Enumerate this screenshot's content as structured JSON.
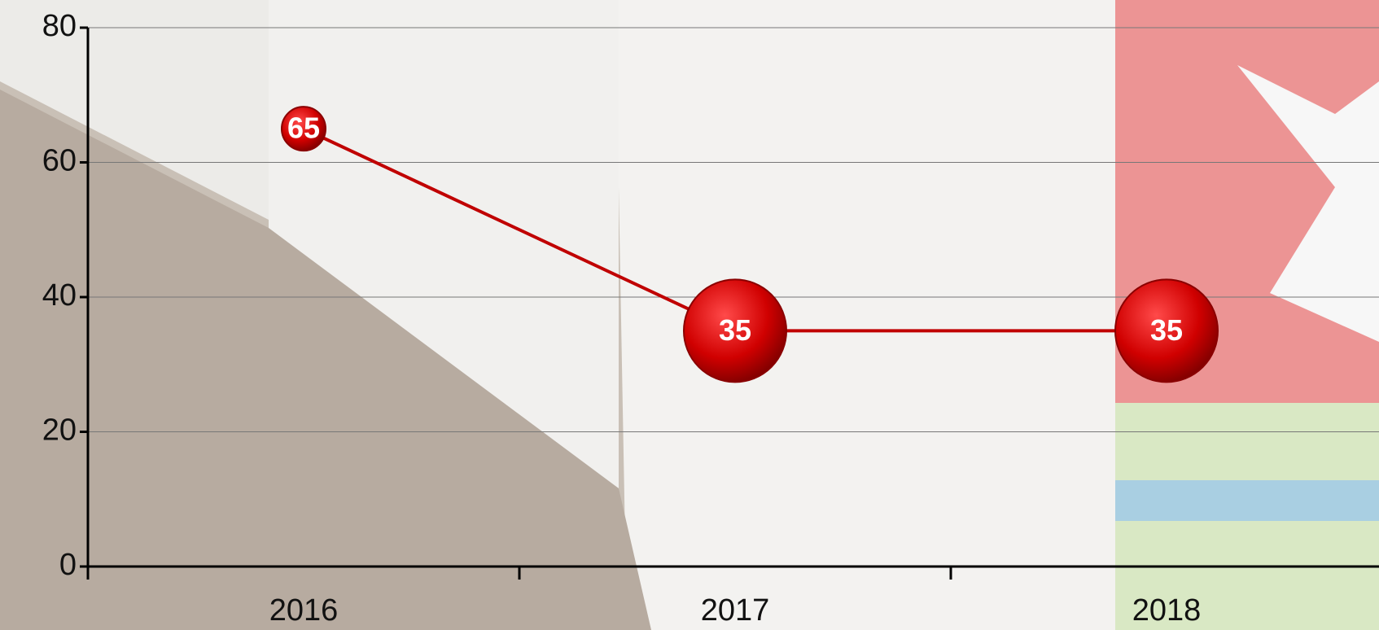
{
  "chart_data": {
    "type": "line",
    "categories": [
      "2016",
      "2017",
      "2018"
    ],
    "series": [
      {
        "color": "#c00000",
        "values": [
          65,
          35,
          35
        ]
      }
    ],
    "ylim": [
      0,
      80
    ],
    "yticks": [
      0,
      20,
      40,
      60,
      80
    ],
    "grid": true
  }
}
